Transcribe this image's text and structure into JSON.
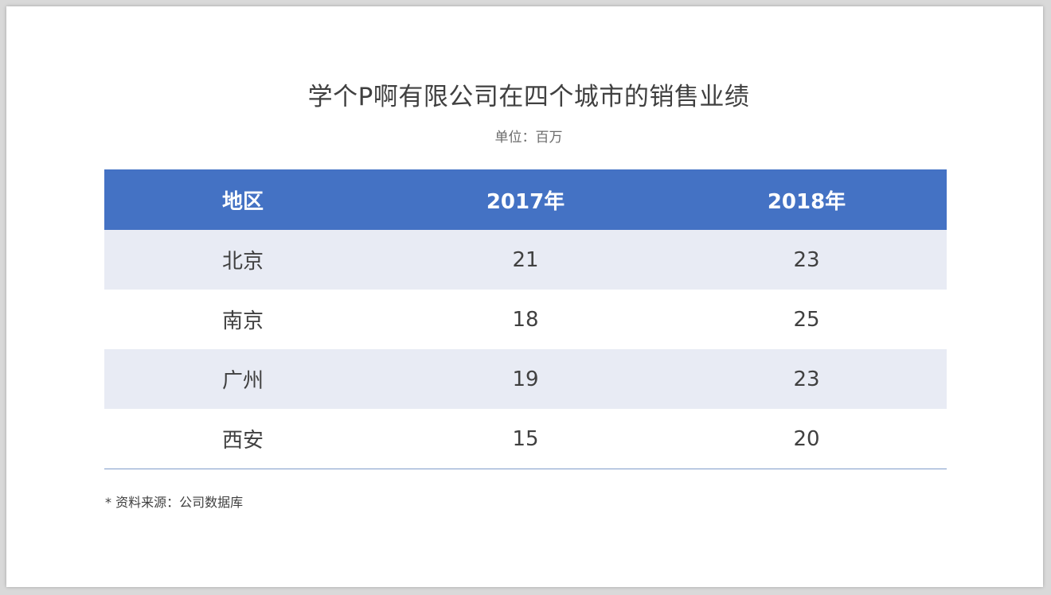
{
  "title": "学个P啊有限公司在四个城市的销售业绩",
  "subtitle": "单位：百万",
  "note": "* 资料来源：公司数据库",
  "colors": {
    "header_bg": "#4472c4",
    "row_shaded": "#e8ebf4",
    "row_plain": "#ffffff",
    "rule": "#7f9cc9"
  },
  "chart_data": {
    "type": "table",
    "title": "学个P啊有限公司在四个城市的销售业绩",
    "subtitle": "单位：百万",
    "columns": [
      "地区",
      "2017年",
      "2018年"
    ],
    "rows": [
      [
        "北京",
        "21",
        "23"
      ],
      [
        "南京",
        "18",
        "25"
      ],
      [
        "广州",
        "19",
        "23"
      ],
      [
        "西安",
        "15",
        "20"
      ]
    ]
  }
}
